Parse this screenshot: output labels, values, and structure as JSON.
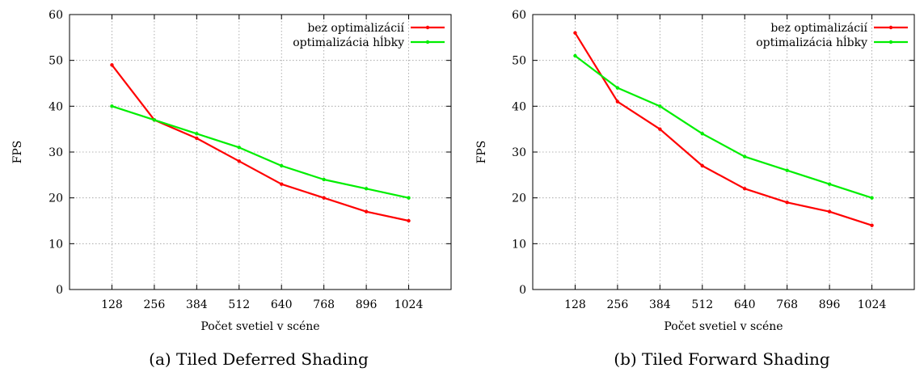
{
  "chart_data": [
    {
      "type": "line",
      "caption": "(a) Tiled Deferred Shading",
      "xlabel": "Počet svetiel v scéne",
      "ylabel": "FPS",
      "categories": [
        "128",
        "256",
        "384",
        "512",
        "640",
        "768",
        "896",
        "1024"
      ],
      "ylim": [
        0,
        60
      ],
      "yticks": [
        "0",
        "10",
        "20",
        "30",
        "40",
        "50",
        "60"
      ],
      "grid": true,
      "legend_position": "top-right",
      "series": [
        {
          "name": "bez optimalizácií",
          "color": "#ff0000",
          "values": [
            49,
            37,
            33,
            28,
            23,
            20,
            17,
            15
          ]
        },
        {
          "name": "optimalizácia hĺbky",
          "color": "#00ee00",
          "values": [
            40,
            37,
            34,
            31,
            27,
            24,
            22,
            20
          ]
        }
      ]
    },
    {
      "type": "line",
      "caption": "(b) Tiled Forward Shading",
      "xlabel": "Počet svetiel v scéne",
      "ylabel": "FPS",
      "categories": [
        "128",
        "256",
        "384",
        "512",
        "640",
        "768",
        "896",
        "1024"
      ],
      "ylim": [
        0,
        60
      ],
      "yticks": [
        "0",
        "10",
        "20",
        "30",
        "40",
        "50",
        "60"
      ],
      "grid": true,
      "legend_position": "top-right",
      "series": [
        {
          "name": "bez optimalizácií",
          "color": "#ff0000",
          "values": [
            56,
            41,
            35,
            27,
            22,
            19,
            17,
            14
          ]
        },
        {
          "name": "optimalizácia hĺbky",
          "color": "#00ee00",
          "values": [
            51,
            44,
            40,
            34,
            29,
            26,
            23,
            20
          ]
        }
      ]
    }
  ]
}
